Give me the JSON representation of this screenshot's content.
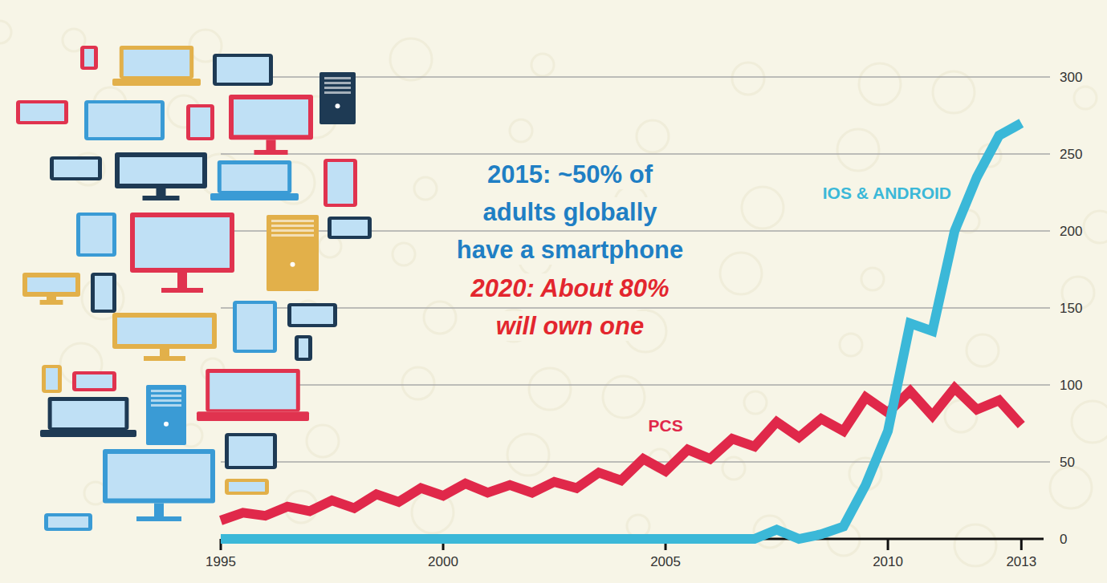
{
  "chart_data": {
    "type": "line",
    "x": [
      1995,
      1995.5,
      1996,
      1996.5,
      1997,
      1997.5,
      1998,
      1998.5,
      1999,
      1999.5,
      2000,
      2000.5,
      2001,
      2001.5,
      2002,
      2002.5,
      2003,
      2003.5,
      2004,
      2004.5,
      2005,
      2005.5,
      2006,
      2006.5,
      2007,
      2007.5,
      2008,
      2008.5,
      2009,
      2009.5,
      2010,
      2010.5,
      2011,
      2011.5,
      2012,
      2012.5,
      2013
    ],
    "series": [
      {
        "name": "PCS",
        "color": "#e0284a",
        "values": [
          12,
          17,
          15,
          21,
          18,
          25,
          20,
          29,
          24,
          33,
          28,
          36,
          30,
          35,
          30,
          37,
          33,
          43,
          38,
          52,
          44,
          58,
          52,
          65,
          60,
          76,
          66,
          78,
          70,
          92,
          82,
          96,
          80,
          98,
          84,
          90,
          74
        ]
      },
      {
        "name": "IOS & ANDROID",
        "color": "#3bb8d8",
        "values": [
          0,
          0,
          0,
          0,
          0,
          0,
          0,
          0,
          0,
          0,
          0,
          0,
          0,
          0,
          0,
          0,
          0,
          0,
          0,
          0,
          0,
          0,
          0,
          0,
          0,
          6,
          0,
          3,
          8,
          35,
          70,
          140,
          135,
          200,
          235,
          262,
          270
        ]
      }
    ],
    "xlim": [
      1995,
      2013.5
    ],
    "xticks": [
      1995,
      2000,
      2005,
      2010,
      2013
    ],
    "ylim": [
      0,
      300
    ],
    "yticks": [
      0,
      50,
      100,
      150,
      200,
      250,
      300
    ],
    "grid": true,
    "annotations": [
      [
        "2015: ~50% of",
        "adults globally",
        "have a smartphone"
      ],
      [
        "2020: About 80%",
        "will own one"
      ]
    ]
  }
}
